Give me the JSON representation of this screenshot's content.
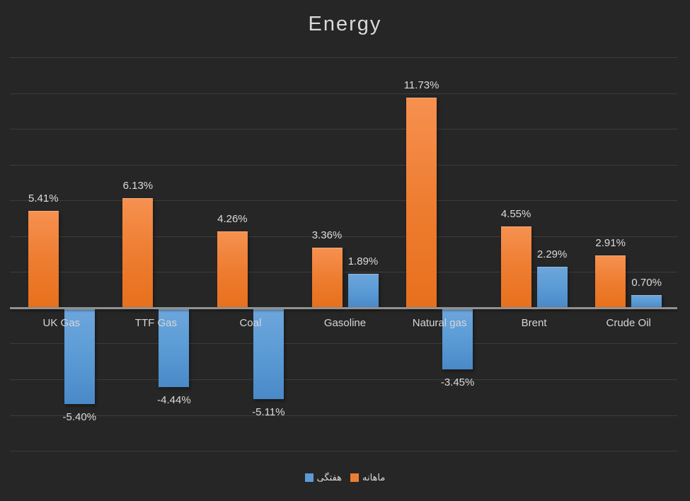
{
  "colors": {
    "background": "#262626",
    "monthly": "#ED7D31",
    "weekly": "#5B9BD5",
    "text": "#D9D9D9",
    "gridline": "#3C3C3C",
    "axis_line": "#919191"
  },
  "legend": {
    "items": [
      {
        "label": "هفتگی",
        "series": "weekly"
      },
      {
        "label": "ماهانه",
        "series": "monthly"
      }
    ]
  },
  "chart_data": {
    "type": "bar",
    "title": "Energy",
    "categories": [
      "UK Gas",
      "TTF Gas",
      "Coal",
      "Gasoline",
      "Natural gas",
      "Brent",
      "Crude Oil"
    ],
    "series": [
      {
        "name": "ماهانه",
        "key": "monthly",
        "color": "#ED7D31",
        "values": [
          5.41,
          6.13,
          4.26,
          3.36,
          11.73,
          4.55,
          2.91
        ],
        "labels": [
          "5.41%",
          "6.13%",
          "4.26%",
          "3.36%",
          "11.73%",
          "4.55%",
          "2.91%"
        ]
      },
      {
        "name": "هفتگی",
        "key": "weekly",
        "color": "#5B9BD5",
        "values": [
          -5.4,
          -4.44,
          -5.11,
          1.89,
          -3.45,
          2.29,
          0.7
        ],
        "labels": [
          "-5.40%",
          "-4.44%",
          "-5.11%",
          "1.89%",
          "-3.45%",
          "2.29%",
          "0.70%"
        ]
      }
    ],
    "ylim": [
      -8,
      14
    ],
    "gridline_step": 2,
    "grid": true,
    "y_axis_labels_visible": false,
    "data_labels_visible": true,
    "legend_position": "bottom"
  }
}
